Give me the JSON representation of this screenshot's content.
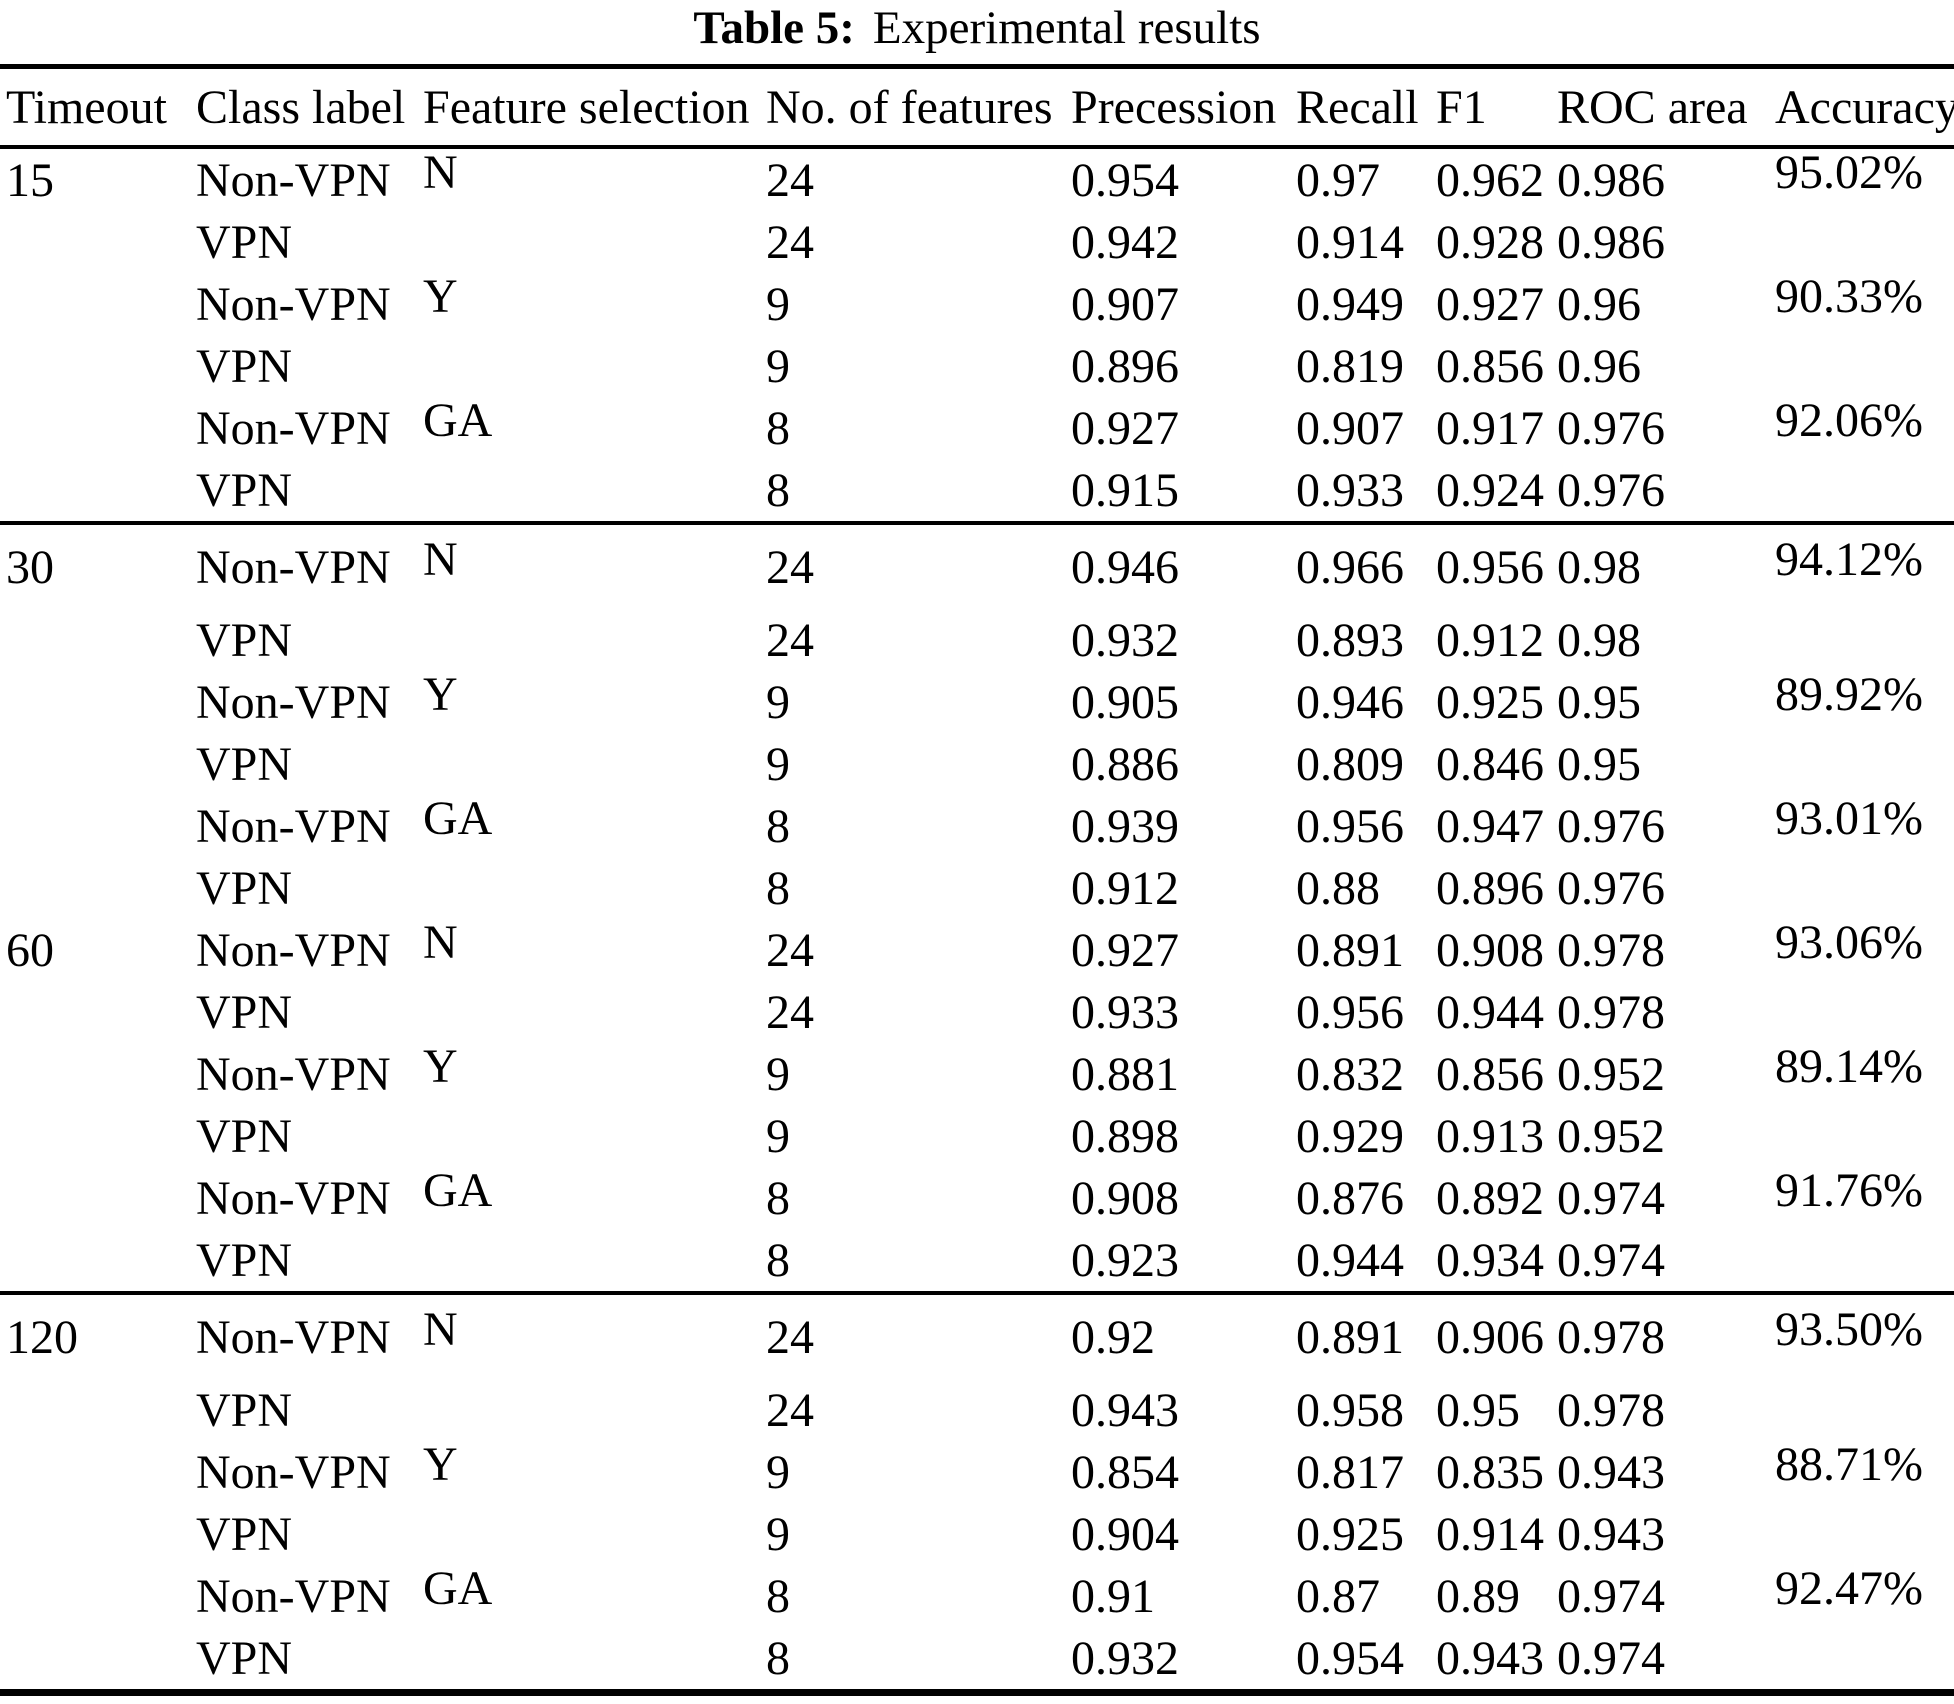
{
  "caption": {
    "label": "Table 5:",
    "text": "Experimental results"
  },
  "table": {
    "columns": [
      "Timeout",
      "Class label",
      "Feature selection",
      "No. of features",
      "Precession",
      "Recall",
      "F1",
      "ROC area",
      "Accuracy"
    ],
    "row_keys": [
      "timeout",
      "class_label",
      "feature_selection",
      "num_features",
      "precession",
      "recall",
      "f1",
      "roc_area",
      "accuracy"
    ],
    "rows": [
      {
        "timeout": "15",
        "class_label": "Non-VPN",
        "feature_selection": "N",
        "num_features": "24",
        "precession": "0.954",
        "recall": "0.97",
        "f1": "0.962",
        "roc_area": "0.986",
        "accuracy": "95.02%",
        "rule_above": false
      },
      {
        "timeout": "",
        "class_label": "VPN",
        "feature_selection": "",
        "num_features": "24",
        "precession": "0.942",
        "recall": "0.914",
        "f1": "0.928",
        "roc_area": "0.986",
        "accuracy": "",
        "rule_above": false
      },
      {
        "timeout": "",
        "class_label": "Non-VPN",
        "feature_selection": "Y",
        "num_features": "9",
        "precession": "0.907",
        "recall": "0.949",
        "f1": "0.927",
        "roc_area": "0.96",
        "accuracy": "90.33%",
        "rule_above": false
      },
      {
        "timeout": "",
        "class_label": "VPN",
        "feature_selection": "",
        "num_features": "9",
        "precession": "0.896",
        "recall": "0.819",
        "f1": "0.856",
        "roc_area": "0.96",
        "accuracy": "",
        "rule_above": false
      },
      {
        "timeout": "",
        "class_label": "Non-VPN",
        "feature_selection": "GA",
        "num_features": "8",
        "precession": "0.927",
        "recall": "0.907",
        "f1": "0.917",
        "roc_area": "0.976",
        "accuracy": "92.06%",
        "rule_above": false
      },
      {
        "timeout": "",
        "class_label": "VPN",
        "feature_selection": "",
        "num_features": "8",
        "precession": "0.915",
        "recall": "0.933",
        "f1": "0.924",
        "roc_area": "0.976",
        "accuracy": "",
        "rule_above": false
      },
      {
        "timeout": "30",
        "class_label": "Non-VPN",
        "feature_selection": "N",
        "num_features": "24",
        "precession": "0.946",
        "recall": "0.966",
        "f1": "0.956",
        "roc_area": "0.98",
        "accuracy": "94.12%",
        "rule_above": true
      },
      {
        "timeout": "",
        "class_label": "VPN",
        "feature_selection": "",
        "num_features": "24",
        "precession": "0.932",
        "recall": "0.893",
        "f1": "0.912",
        "roc_area": "0.98",
        "accuracy": "",
        "rule_above": false
      },
      {
        "timeout": "",
        "class_label": "Non-VPN",
        "feature_selection": "Y",
        "num_features": "9",
        "precession": "0.905",
        "recall": "0.946",
        "f1": "0.925",
        "roc_area": "0.95",
        "accuracy": "89.92%",
        "rule_above": false
      },
      {
        "timeout": "",
        "class_label": "VPN",
        "feature_selection": "",
        "num_features": "9",
        "precession": "0.886",
        "recall": "0.809",
        "f1": "0.846",
        "roc_area": "0.95",
        "accuracy": "",
        "rule_above": false
      },
      {
        "timeout": "",
        "class_label": "Non-VPN",
        "feature_selection": "GA",
        "num_features": "8",
        "precession": "0.939",
        "recall": "0.956",
        "f1": "0.947",
        "roc_area": "0.976",
        "accuracy": "93.01%",
        "rule_above": false
      },
      {
        "timeout": "",
        "class_label": "VPN",
        "feature_selection": "",
        "num_features": "8",
        "precession": "0.912",
        "recall": "0.88",
        "f1": "0.896",
        "roc_area": "0.976",
        "accuracy": "",
        "rule_above": false
      },
      {
        "timeout": "60",
        "class_label": "Non-VPN",
        "feature_selection": "N",
        "num_features": "24",
        "precession": "0.927",
        "recall": "0.891",
        "f1": "0.908",
        "roc_area": "0.978",
        "accuracy": "93.06%",
        "rule_above": false
      },
      {
        "timeout": "",
        "class_label": "VPN",
        "feature_selection": "",
        "num_features": "24",
        "precession": "0.933",
        "recall": "0.956",
        "f1": "0.944",
        "roc_area": "0.978",
        "accuracy": "",
        "rule_above": false
      },
      {
        "timeout": "",
        "class_label": "Non-VPN",
        "feature_selection": "Y",
        "num_features": "9",
        "precession": "0.881",
        "recall": "0.832",
        "f1": "0.856",
        "roc_area": "0.952",
        "accuracy": "89.14%",
        "rule_above": false
      },
      {
        "timeout": "",
        "class_label": "VPN",
        "feature_selection": "",
        "num_features": "9",
        "precession": "0.898",
        "recall": "0.929",
        "f1": "0.913",
        "roc_area": "0.952",
        "accuracy": "",
        "rule_above": false
      },
      {
        "timeout": "",
        "class_label": "Non-VPN",
        "feature_selection": "GA",
        "num_features": "8",
        "precession": "0.908",
        "recall": "0.876",
        "f1": "0.892",
        "roc_area": "0.974",
        "accuracy": "91.76%",
        "rule_above": false
      },
      {
        "timeout": "",
        "class_label": "VPN",
        "feature_selection": "",
        "num_features": "8",
        "precession": "0.923",
        "recall": "0.944",
        "f1": "0.934",
        "roc_area": "0.974",
        "accuracy": "",
        "rule_above": false
      },
      {
        "timeout": "120",
        "class_label": "Non-VPN",
        "feature_selection": "N",
        "num_features": "24",
        "precession": "0.92",
        "recall": "0.891",
        "f1": "0.906",
        "roc_area": "0.978",
        "accuracy": "93.50%",
        "rule_above": true
      },
      {
        "timeout": "",
        "class_label": "VPN",
        "feature_selection": "",
        "num_features": "24",
        "precession": "0.943",
        "recall": "0.958",
        "f1": "0.95",
        "roc_area": "0.978",
        "accuracy": "",
        "rule_above": false
      },
      {
        "timeout": "",
        "class_label": "Non-VPN",
        "feature_selection": "Y",
        "num_features": "9",
        "precession": "0.854",
        "recall": "0.817",
        "f1": "0.835",
        "roc_area": "0.943",
        "accuracy": "88.71%",
        "rule_above": false
      },
      {
        "timeout": "",
        "class_label": "VPN",
        "feature_selection": "",
        "num_features": "9",
        "precession": "0.904",
        "recall": "0.925",
        "f1": "0.914",
        "roc_area": "0.943",
        "accuracy": "",
        "rule_above": false
      },
      {
        "timeout": "",
        "class_label": "Non-VPN",
        "feature_selection": "GA",
        "num_features": "8",
        "precession": "0.91",
        "recall": "0.87",
        "f1": "0.89",
        "roc_area": "0.974",
        "accuracy": "92.47%",
        "rule_above": false
      },
      {
        "timeout": "",
        "class_label": "VPN",
        "feature_selection": "",
        "num_features": "8",
        "precession": "0.932",
        "recall": "0.954",
        "f1": "0.943",
        "roc_area": "0.974",
        "accuracy": "",
        "rule_above": false
      }
    ]
  }
}
